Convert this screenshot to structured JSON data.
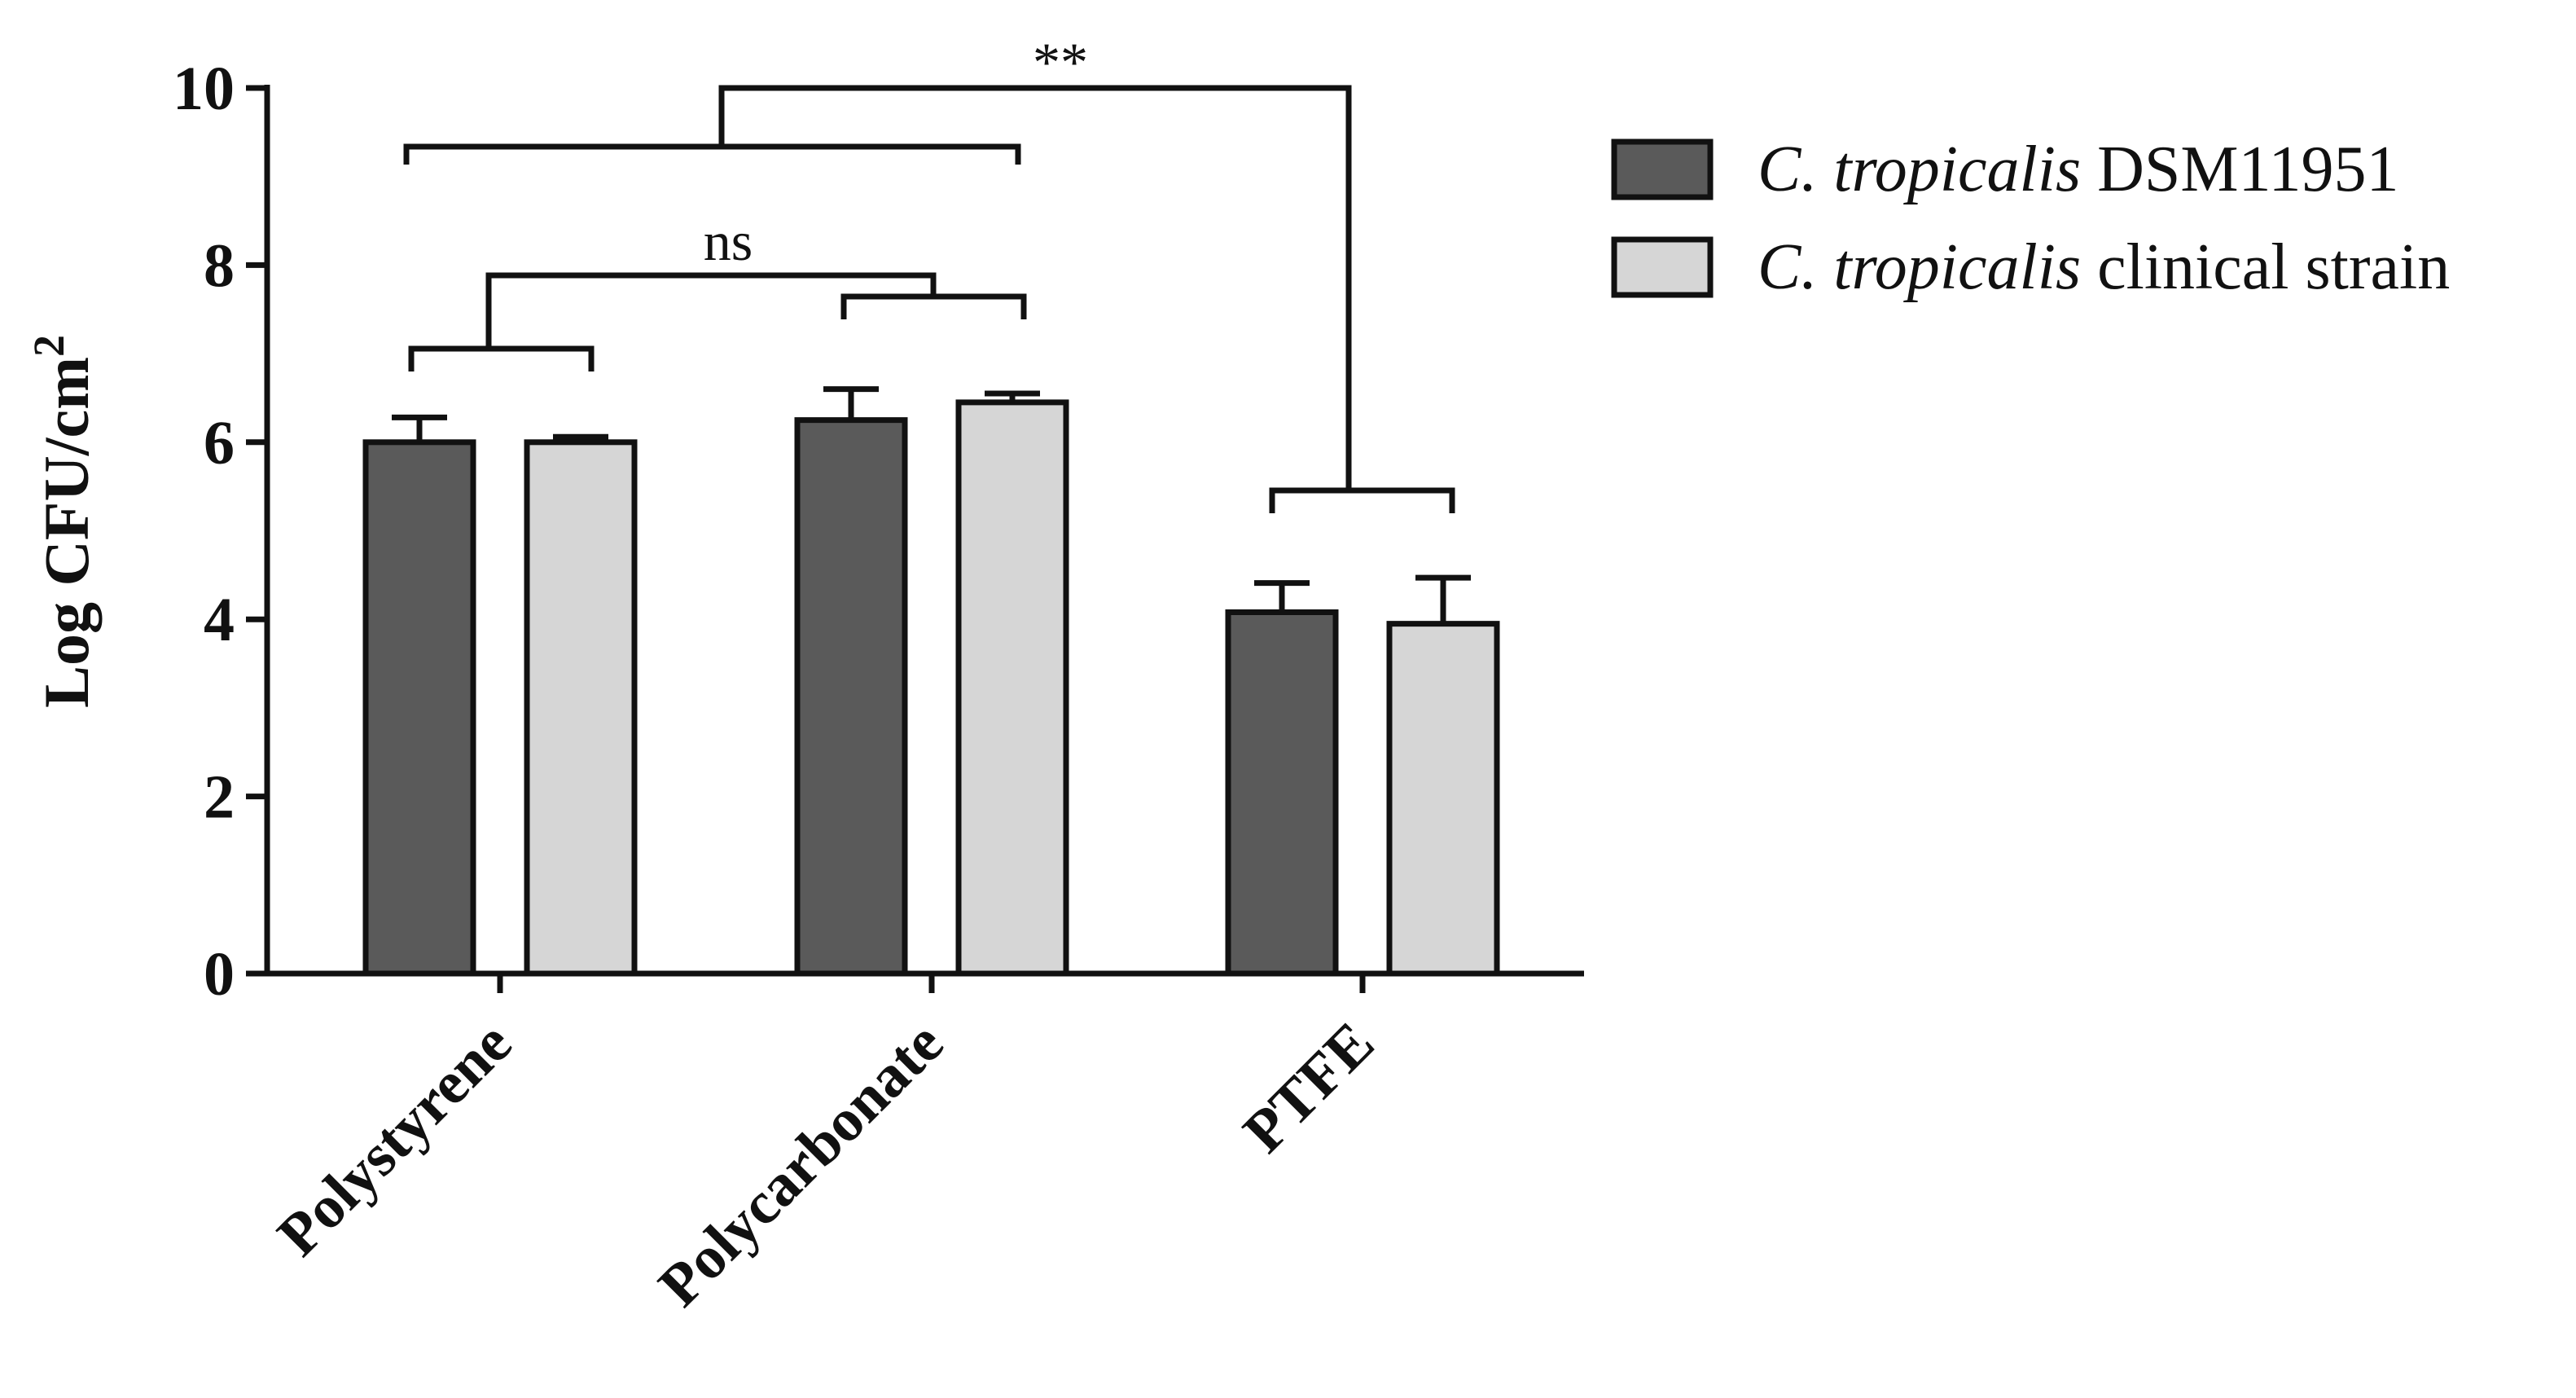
{
  "chart_data": {
    "type": "bar",
    "ylabel": "Log CFU/cm",
    "ylabel_superscript": "2",
    "ylim": [
      0,
      10
    ],
    "yticks": [
      "0",
      "2",
      "4",
      "6",
      "8",
      "10"
    ],
    "categories": [
      "Polystyrene",
      "Polycarbonate",
      "PTFE"
    ],
    "series": [
      {
        "name_italic": "C. tropicalis",
        "name_rest": " DSM11951",
        "color": "#5a5a5a",
        "values": [
          6.0,
          6.25,
          4.08
        ],
        "errors": [
          0.28,
          0.35,
          0.33
        ]
      },
      {
        "name_italic": "C. tropicalis",
        "name_rest": " clinical strain",
        "color": "#d6d6d6",
        "values": [
          6.0,
          6.45,
          3.95
        ],
        "errors": [
          0.06,
          0.1,
          0.52
        ]
      }
    ],
    "annotations": [
      {
        "label": "**",
        "description": "Polystyrene + Polycarbonate vs PTFE"
      },
      {
        "label": "ns",
        "description": "Polystyrene vs Polycarbonate"
      }
    ],
    "legend_position": "top-right",
    "grid": false
  }
}
